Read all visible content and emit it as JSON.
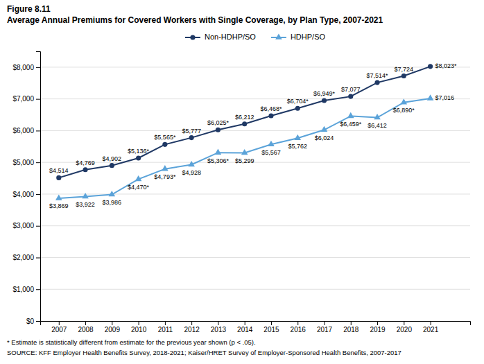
{
  "chart_data": {
    "type": "line",
    "title": "Figure 8.11",
    "subtitle": "Average Annual Premiums for Covered Workers with Single Coverage, by Plan Type, 2007-2021",
    "x": [
      2007,
      2008,
      2009,
      2010,
      2011,
      2012,
      2013,
      2014,
      2015,
      2016,
      2017,
      2018,
      2019,
      2020,
      2021
    ],
    "series": [
      {
        "name": "Non-HDHP/SO",
        "color": "#1f3864",
        "marker": "circle",
        "values": [
          4514,
          4769,
          4902,
          5136,
          5565,
          5777,
          6025,
          6212,
          6468,
          6704,
          6949,
          7077,
          7514,
          7724,
          8023
        ],
        "value_labels": [
          "$4,514",
          "$4,769",
          "$4,902",
          "$5,136*",
          "$5,565*",
          "$5,777",
          "$6,025*",
          "$6,212",
          "$6,468*",
          "$6,704*",
          "$6,949*",
          "$7,077",
          "$7,514*",
          "$7,724",
          "$8,023*"
        ]
      },
      {
        "name": "HDHP/SO",
        "color": "#5ba3d9",
        "marker": "triangle",
        "values": [
          3869,
          3922,
          3986,
          4470,
          4793,
          4928,
          5306,
          5299,
          5567,
          5762,
          6024,
          6459,
          6412,
          6890,
          7016
        ],
        "value_labels": [
          "$3,869",
          "$3,922",
          "$3,986",
          "$4,470*",
          "$4,793*",
          "$4,928",
          "$5,306*",
          "$5,299",
          "$5,567",
          "$5,762",
          "$6,024",
          "$6,459*",
          "$6,412",
          "$6,890*",
          "$7,016"
        ]
      }
    ],
    "xlim": [
      2006.3,
      2022.5
    ],
    "xticks": [
      2007,
      2008,
      2009,
      2010,
      2011,
      2012,
      2013,
      2014,
      2015,
      2016,
      2017,
      2018,
      2019,
      2020,
      2021
    ],
    "ylim": [
      0,
      8500
    ],
    "yticks": [
      {
        "value": 0,
        "label": "$0"
      },
      {
        "value": 1000,
        "label": "$1,000"
      },
      {
        "value": 2000,
        "label": "$2,000"
      },
      {
        "value": 3000,
        "label": "$3,000"
      },
      {
        "value": 4000,
        "label": "$4,000"
      },
      {
        "value": 5000,
        "label": "$5,000"
      },
      {
        "value": 6000,
        "label": "$6,000"
      },
      {
        "value": 7000,
        "label": "$7,000"
      },
      {
        "value": 8000,
        "label": "$8,000"
      }
    ],
    "grid": true,
    "legend": "top",
    "data_labels": true,
    "annotations": [
      "* Estimate is statistically different from estimate for the previous year shown (p < .05).",
      "SOURCE: KFF Employer Health Benefits Survey, 2018-2021; Kaiser/HRET Survey of Employer-Sponsored Health Benefits, 2007-2017"
    ]
  }
}
